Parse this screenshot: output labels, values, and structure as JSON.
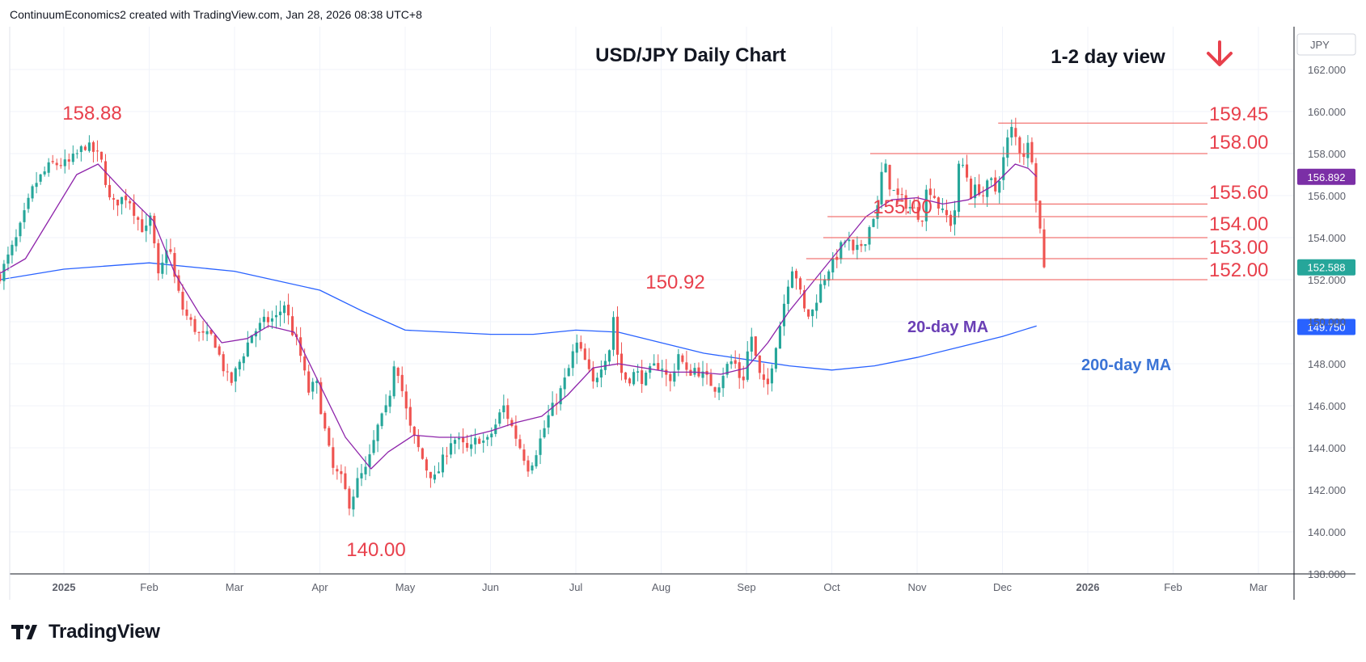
{
  "header": {
    "attribution": "ContinuumEconomics2 created with TradingView.com, Jan 28, 2026 08:38 UTC+8"
  },
  "branding": {
    "logo_text": "TradingView",
    "logo_mark": "tv-logo-icon"
  },
  "chart_data": {
    "type": "candlestick",
    "title": "USD/JPY Daily Chart",
    "view_label": "1-2 day view",
    "view_icon": "down-arrow-icon",
    "currency_label": "JPY",
    "ylim": [
      138,
      163
    ],
    "y_ticks": [
      {
        "v": 138,
        "t": "138.000"
      },
      {
        "v": 140,
        "t": "140.000"
      },
      {
        "v": 142,
        "t": "142.000"
      },
      {
        "v": 144,
        "t": "144.000"
      },
      {
        "v": 146,
        "t": "146.000"
      },
      {
        "v": 148,
        "t": "148.000"
      },
      {
        "v": 150,
        "t": "150.000"
      },
      {
        "v": 152,
        "t": "152.000"
      },
      {
        "v": 154,
        "t": "154.000"
      },
      {
        "v": 156,
        "t": "156.000"
      },
      {
        "v": 158,
        "t": "158.000"
      },
      {
        "v": 160,
        "t": "160.000"
      },
      {
        "v": 162,
        "t": "162.000"
      }
    ],
    "x_ticks": [
      {
        "m": 0,
        "t": "2025",
        "bold": true
      },
      {
        "m": 1,
        "t": "Feb"
      },
      {
        "m": 2,
        "t": "Mar"
      },
      {
        "m": 3,
        "t": "Apr"
      },
      {
        "m": 4,
        "t": "May"
      },
      {
        "m": 5,
        "t": "Jun"
      },
      {
        "m": 6,
        "t": "Jul"
      },
      {
        "m": 7,
        "t": "Aug"
      },
      {
        "m": 8,
        "t": "Sep"
      },
      {
        "m": 9,
        "t": "Oct"
      },
      {
        "m": 10,
        "t": "Nov"
      },
      {
        "m": 11,
        "t": "Dec"
      },
      {
        "m": 12,
        "t": "2026",
        "bold": true
      },
      {
        "m": 13,
        "t": "Feb"
      },
      {
        "m": 14,
        "t": "Mar"
      }
    ],
    "anchors_close": [
      [
        -0.75,
        152.2
      ],
      [
        -0.55,
        154.0
      ],
      [
        -0.35,
        156.5
      ],
      [
        -0.15,
        157.5
      ],
      [
        0.05,
        157.5
      ],
      [
        0.25,
        158.4
      ],
      [
        0.38,
        158.0
      ],
      [
        0.45,
        157.5
      ],
      [
        0.55,
        155.5
      ],
      [
        0.65,
        155.8
      ],
      [
        0.75,
        156.0
      ],
      [
        0.85,
        155.0
      ],
      [
        0.95,
        154.2
      ],
      [
        1.02,
        155.0
      ],
      [
        1.1,
        152.0
      ],
      [
        1.18,
        153.0
      ],
      [
        1.22,
        154.0
      ],
      [
        1.3,
        152.0
      ],
      [
        1.4,
        150.5
      ],
      [
        1.48,
        150.0
      ],
      [
        1.6,
        149.3
      ],
      [
        1.75,
        149.3
      ],
      [
        1.85,
        148.0
      ],
      [
        1.95,
        147.0
      ],
      [
        2.05,
        148.0
      ],
      [
        2.2,
        149.4
      ],
      [
        2.35,
        150.0
      ],
      [
        2.5,
        150.2
      ],
      [
        2.58,
        150.9
      ],
      [
        2.68,
        149.5
      ],
      [
        2.75,
        148.8
      ],
      [
        2.82,
        147.5
      ],
      [
        2.88,
        146.5
      ],
      [
        2.95,
        147.3
      ],
      [
        3.05,
        145.0
      ],
      [
        3.15,
        143.0
      ],
      [
        3.25,
        142.5
      ],
      [
        3.35,
        141.3
      ],
      [
        3.45,
        142.5
      ],
      [
        3.55,
        143.0
      ],
      [
        3.68,
        145.0
      ],
      [
        3.8,
        146.0
      ],
      [
        3.88,
        148.4
      ],
      [
        3.95,
        147.0
      ],
      [
        4.05,
        145.0
      ],
      [
        4.15,
        144.0
      ],
      [
        4.25,
        143.0
      ],
      [
        4.35,
        142.5
      ],
      [
        4.45,
        143.5
      ],
      [
        4.55,
        144.5
      ],
      [
        4.65,
        144.2
      ],
      [
        4.75,
        143.8
      ],
      [
        4.85,
        144.5
      ],
      [
        4.95,
        144.2
      ],
      [
        5.05,
        145.0
      ],
      [
        5.15,
        146.0
      ],
      [
        5.25,
        145.0
      ],
      [
        5.35,
        144.0
      ],
      [
        5.45,
        143.0
      ],
      [
        5.55,
        144.0
      ],
      [
        5.68,
        145.5
      ],
      [
        5.8,
        146.5
      ],
      [
        5.9,
        147.5
      ],
      [
        6.0,
        149.0
      ],
      [
        6.1,
        148.2
      ],
      [
        6.2,
        147.0
      ],
      [
        6.3,
        148.0
      ],
      [
        6.4,
        148.8
      ],
      [
        6.45,
        150.6
      ],
      [
        6.5,
        147.8
      ],
      [
        6.6,
        147.2
      ],
      [
        6.7,
        147.6
      ],
      [
        6.8,
        147.2
      ],
      [
        6.9,
        147.8
      ],
      [
        7.0,
        148.0
      ],
      [
        7.1,
        147.0
      ],
      [
        7.2,
        148.5
      ],
      [
        7.3,
        147.5
      ],
      [
        7.4,
        147.8
      ],
      [
        7.55,
        147.2
      ],
      [
        7.65,
        146.8
      ],
      [
        7.75,
        147.8
      ],
      [
        7.85,
        148.2
      ],
      [
        7.95,
        147.0
      ],
      [
        8.05,
        149.5
      ],
      [
        8.12,
        148.0
      ],
      [
        8.18,
        147.0
      ],
      [
        8.25,
        147.0
      ],
      [
        8.32,
        148.5
      ],
      [
        8.4,
        150.0
      ],
      [
        8.48,
        151.8
      ],
      [
        8.55,
        152.8
      ],
      [
        8.62,
        151.5
      ],
      [
        8.68,
        150.5
      ],
      [
        8.75,
        150.2
      ],
      [
        8.85,
        151.5
      ],
      [
        8.95,
        152.5
      ],
      [
        9.02,
        152.8
      ],
      [
        9.1,
        153.5
      ],
      [
        9.18,
        154.0
      ],
      [
        9.25,
        153.2
      ],
      [
        9.32,
        153.5
      ],
      [
        9.4,
        154.0
      ],
      [
        9.48,
        155.0
      ],
      [
        9.55,
        155.5
      ],
      [
        9.6,
        157.8
      ],
      [
        9.68,
        156.5
      ],
      [
        9.75,
        156.0
      ],
      [
        9.82,
        155.8
      ],
      [
        9.9,
        155.5
      ],
      [
        10.0,
        155.2
      ],
      [
        10.05,
        154.8
      ],
      [
        10.12,
        156.5
      ],
      [
        10.2,
        156.0
      ],
      [
        10.28,
        155.2
      ],
      [
        10.35,
        155.0
      ],
      [
        10.42,
        154.5
      ],
      [
        10.5,
        157.8
      ],
      [
        10.58,
        157.0
      ],
      [
        10.62,
        156.0
      ],
      [
        10.7,
        156.4
      ],
      [
        10.78,
        156.0
      ],
      [
        10.85,
        156.8
      ],
      [
        10.92,
        156.2
      ],
      [
        11.0,
        157.5
      ],
      [
        11.05,
        158.5
      ],
      [
        11.1,
        159.2
      ],
      [
        11.15,
        158.8
      ],
      [
        11.2,
        158.2
      ],
      [
        11.25,
        158.0
      ],
      [
        11.3,
        158.4
      ],
      [
        11.35,
        157.8
      ],
      [
        11.4,
        155.7
      ],
      [
        11.43,
        154.8
      ],
      [
        11.46,
        153.6
      ],
      [
        11.5,
        152.1
      ],
      [
        11.53,
        152.59
      ]
    ],
    "ma20_anchors": [
      [
        -0.75,
        152.3
      ],
      [
        -0.45,
        153.0
      ],
      [
        -0.15,
        155.0
      ],
      [
        0.15,
        157.0
      ],
      [
        0.4,
        157.5
      ],
      [
        0.7,
        156.2
      ],
      [
        1.05,
        154.8
      ],
      [
        1.3,
        152.3
      ],
      [
        1.6,
        150.3
      ],
      [
        1.85,
        149.0
      ],
      [
        2.15,
        149.2
      ],
      [
        2.4,
        149.8
      ],
      [
        2.7,
        149.5
      ],
      [
        3.0,
        147.0
      ],
      [
        3.3,
        144.5
      ],
      [
        3.6,
        143.0
      ],
      [
        3.8,
        143.8
      ],
      [
        4.1,
        144.6
      ],
      [
        4.4,
        144.5
      ],
      [
        4.7,
        144.5
      ],
      [
        5.0,
        144.8
      ],
      [
        5.3,
        145.2
      ],
      [
        5.6,
        145.5
      ],
      [
        5.9,
        146.5
      ],
      [
        6.2,
        147.8
      ],
      [
        6.5,
        148.0
      ],
      [
        6.8,
        147.8
      ],
      [
        7.1,
        147.6
      ],
      [
        7.4,
        147.6
      ],
      [
        7.7,
        147.5
      ],
      [
        8.0,
        147.8
      ],
      [
        8.25,
        149.0
      ],
      [
        8.5,
        150.5
      ],
      [
        8.8,
        152.0
      ],
      [
        9.1,
        153.5
      ],
      [
        9.4,
        155.0
      ],
      [
        9.7,
        155.8
      ],
      [
        10.0,
        155.9
      ],
      [
        10.3,
        155.6
      ],
      [
        10.6,
        155.8
      ],
      [
        10.9,
        156.5
      ],
      [
        11.15,
        157.5
      ],
      [
        11.3,
        157.3
      ],
      [
        11.4,
        156.9
      ]
    ],
    "ma200_anchors": [
      [
        -0.75,
        152.0
      ],
      [
        0.0,
        152.5
      ],
      [
        1.0,
        152.8
      ],
      [
        2.0,
        152.4
      ],
      [
        3.0,
        151.5
      ],
      [
        3.5,
        150.5
      ],
      [
        4.0,
        149.6
      ],
      [
        4.5,
        149.5
      ],
      [
        5.0,
        149.4
      ],
      [
        5.5,
        149.4
      ],
      [
        6.0,
        149.6
      ],
      [
        6.5,
        149.5
      ],
      [
        7.0,
        149.0
      ],
      [
        7.5,
        148.5
      ],
      [
        8.0,
        148.2
      ],
      [
        8.5,
        147.9
      ],
      [
        9.0,
        147.7
      ],
      [
        9.5,
        147.9
      ],
      [
        10.0,
        148.3
      ],
      [
        10.5,
        148.8
      ],
      [
        11.0,
        149.3
      ],
      [
        11.4,
        149.8
      ]
    ],
    "levels": [
      {
        "label": "159.45",
        "value": 159.45,
        "from_m": 10.95
      },
      {
        "label": "158.00",
        "value": 158.0,
        "from_m": 9.45
      },
      {
        "label": "155.60",
        "value": 155.6,
        "from_m": 10.6
      },
      {
        "label": "155.00",
        "value": 155.0,
        "from_m": 8.95
      },
      {
        "label": "154.00",
        "value": 154.0,
        "from_m": 8.9
      },
      {
        "label": "153.00",
        "value": 153.0,
        "from_m": 8.7
      },
      {
        "label": "152.00",
        "value": 152.0,
        "from_m": 8.7
      }
    ],
    "annotations": [
      {
        "label": "158.88",
        "value": 158.88
      },
      {
        "label": "150.92",
        "value": 150.92
      },
      {
        "label": "140.00",
        "value": 140.0
      },
      {
        "label": "155.00",
        "value": 155.0
      }
    ],
    "ma_labels": {
      "ma20": "20-day MA",
      "ma200": "200-day MA"
    },
    "price_tags": [
      {
        "label": "156.892",
        "value": 156.892,
        "color": "#7b2fa6"
      },
      {
        "label": "152.588",
        "value": 152.588,
        "color": "#26a69a"
      },
      {
        "label": "149.750",
        "value": 149.75,
        "color": "#2962ff"
      }
    ],
    "colors": {
      "up": "#26a69a",
      "down": "#ef5350",
      "ma20": "#8e24aa",
      "ma200": "#2962ff",
      "level": "#ef5350",
      "arrow": "#e8404c"
    }
  }
}
